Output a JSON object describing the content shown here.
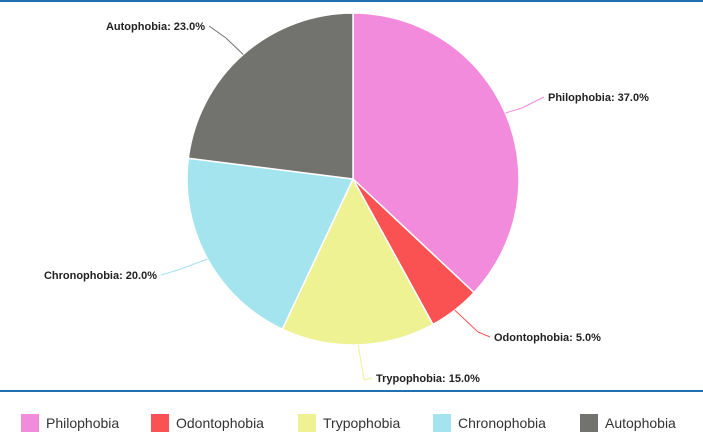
{
  "chart_data": {
    "type": "pie",
    "title": "",
    "legend_position": "bottom",
    "slices": [
      {
        "name": "Philophobia",
        "value": 37.0,
        "label": "Philophobia: 37.0%",
        "color": "#f28bdb"
      },
      {
        "name": "Odontophobia",
        "value": 5.0,
        "label": "Odontophobia: 5.0%",
        "color": "#fa5252"
      },
      {
        "name": "Trypophobia",
        "value": 15.0,
        "label": "Trypophobia: 15.0%",
        "color": "#eff293"
      },
      {
        "name": "Chronophobia",
        "value": 20.0,
        "label": "Chronophobia: 20.0%",
        "color": "#a3e4ef"
      },
      {
        "name": "Autophobia",
        "value": 23.0,
        "label": "Autophobia: 23.0%",
        "color": "#72736e"
      }
    ]
  }
}
